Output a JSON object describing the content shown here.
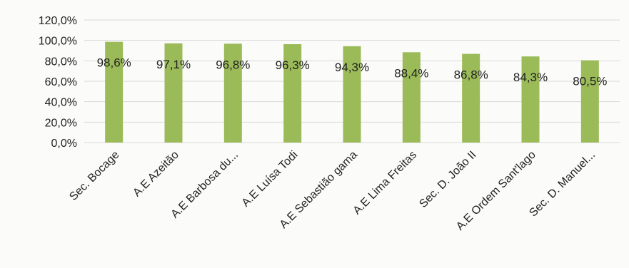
{
  "colors": {
    "bar": "#9bbb59",
    "grid": "#d9d9d9",
    "background": "#fbfbf9",
    "text": "#222222"
  },
  "chart_data": {
    "type": "bar",
    "title": "",
    "xlabel": "",
    "ylabel": "",
    "ylim": [
      0,
      120
    ],
    "y_ticks": [
      "0,0%",
      "20,0%",
      "40,0%",
      "60,0%",
      "80,0%",
      "100,0%",
      "120,0%"
    ],
    "y_tick_values": [
      0,
      20,
      40,
      60,
      80,
      100,
      120
    ],
    "grid": true,
    "legend": "none",
    "categories": [
      "Sec. Bocage",
      "A.E Azeitão",
      "A.E Barbosa du...",
      "A.E Luísa Todi",
      "A.E Sebastião gama",
      "A.E Lima Freitas",
      "Sec. D. João II",
      "A.E Ordem Sant'lago",
      "Sec. D. Manuel..."
    ],
    "values": [
      98.6,
      97.1,
      96.8,
      96.3,
      94.3,
      88.4,
      86.8,
      84.3,
      80.5
    ],
    "data_labels": [
      "98,6%",
      "97,1%",
      "96,8%",
      "96,3%",
      "94,3%",
      "88,4%",
      "86,8%",
      "84,3%",
      "80,5%"
    ]
  }
}
